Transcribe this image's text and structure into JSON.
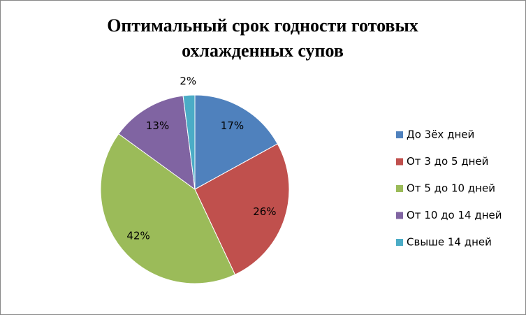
{
  "chart_data": {
    "type": "pie",
    "title": "Оптимальный срок годности готовых охлажденных супов",
    "categories": [
      "До 3ёх дней",
      "От 3 до 5 дней",
      "От 5 до 10 дней",
      "От 10 до 14 дней",
      "Свыше 14 дней"
    ],
    "values": [
      17,
      26,
      42,
      13,
      2
    ],
    "value_labels": [
      "17%",
      "26%",
      "42%",
      "13%",
      "2%"
    ],
    "colors": [
      "#4f81bd",
      "#c0504d",
      "#9bbb59",
      "#8064a2",
      "#4bacc6"
    ],
    "legend": "right"
  }
}
